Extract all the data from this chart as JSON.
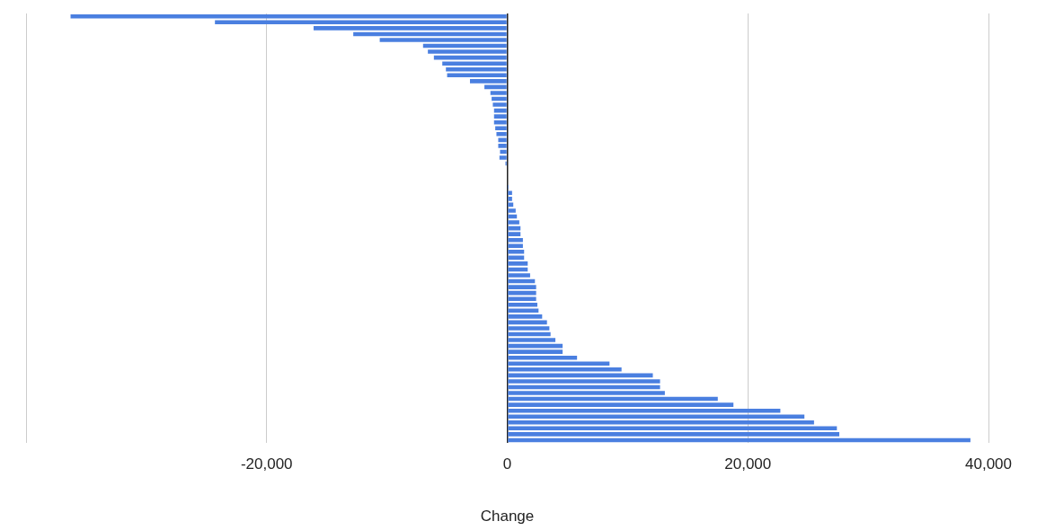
{
  "chart_data": {
    "type": "bar",
    "orientation": "horizontal",
    "xlabel": "Change",
    "color": "#4a7fe0",
    "categories": [
      null,
      null,
      null,
      null,
      null,
      null,
      null,
      null,
      null,
      null,
      null,
      null,
      null,
      null,
      null,
      null,
      null,
      null,
      null,
      null,
      null,
      null,
      null,
      null,
      null,
      null,
      null,
      null,
      null,
      null,
      null,
      null,
      null,
      null,
      null,
      null,
      null,
      null,
      null,
      null,
      null,
      null,
      null,
      null,
      null,
      null,
      null,
      null,
      null,
      null,
      null,
      null,
      null,
      null,
      null,
      null,
      null,
      null,
      null,
      null,
      null,
      null,
      null,
      null,
      null,
      null,
      null,
      null,
      null,
      null,
      null,
      null,
      null
    ],
    "values": [
      -36300,
      -24300,
      -16100,
      -12800,
      -10600,
      -7000,
      -6600,
      -6100,
      -5400,
      -5100,
      -5000,
      -3100,
      -1900,
      -1400,
      -1300,
      -1200,
      -1100,
      -1100,
      -1100,
      -1000,
      -900,
      -750,
      -750,
      -600,
      -650,
      -150,
      0,
      0,
      0,
      100,
      400,
      400,
      500,
      700,
      800,
      1000,
      1100,
      1100,
      1300,
      1300,
      1400,
      1400,
      1700,
      1700,
      1900,
      2300,
      2400,
      2400,
      2400,
      2500,
      2600,
      2900,
      3300,
      3500,
      3600,
      4000,
      4600,
      4600,
      5800,
      8500,
      9500,
      12100,
      12700,
      12700,
      13100,
      17500,
      18800,
      22700,
      24700,
      25500,
      27400,
      27600,
      38500
    ],
    "xlim": [
      -40000,
      40000
    ],
    "xticks": [
      {
        "value": -40000,
        "label": null
      },
      {
        "value": -20000,
        "label": "-20,000"
      },
      {
        "value": 0,
        "label": "0"
      },
      {
        "value": 20000,
        "label": "20,000"
      },
      {
        "value": 40000,
        "label": "40,000"
      }
    ],
    "grid": "x",
    "tick_labels": "x"
  }
}
